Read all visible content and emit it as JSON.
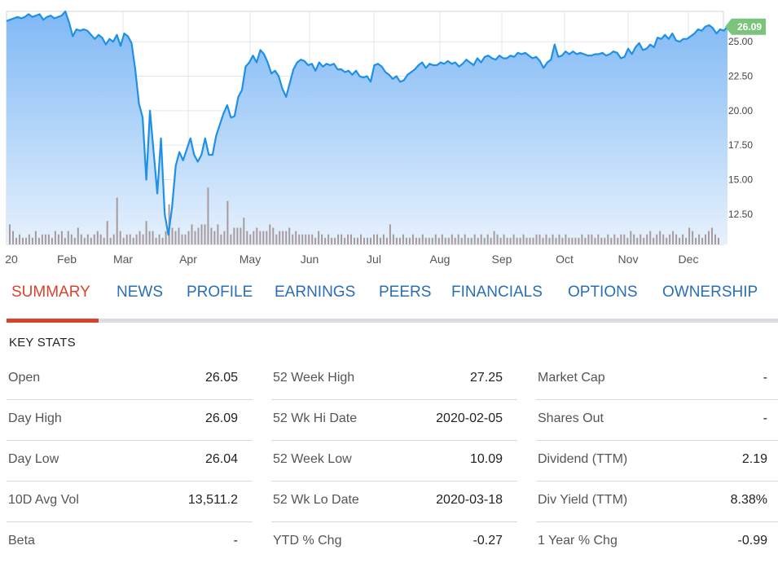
{
  "chart_data": {
    "type": "line",
    "title": "",
    "xlabel": "",
    "ylabel": "",
    "x_tick_labels": [
      "20",
      "Feb",
      "Mar",
      "Apr",
      "May",
      "Jun",
      "Jul",
      "Aug",
      "Sep",
      "Oct",
      "Nov",
      "Dec"
    ],
    "y_ticks": [
      "12.50",
      "15.00",
      "17.50",
      "20.00",
      "22.50",
      "25.00"
    ],
    "ylim": [
      10.3,
      27.2
    ],
    "grid": true,
    "last_price_label": "26.09",
    "colors": {
      "line": "#1e90e8",
      "fill_top": "#7fb8f5",
      "fill_bottom": "#e6f1fd",
      "volume": "#a89a9a",
      "last_badge": "#7cc47c",
      "grid": "#e3e6ea"
    },
    "series": [
      {
        "values": [
          26.5,
          26.6,
          26.7,
          26.8,
          26.7,
          26.8,
          27.0,
          26.8,
          26.9,
          27.0,
          26.6,
          26.8,
          26.9,
          26.7,
          26.8,
          26.9,
          27.2,
          26.4,
          25.4,
          25.9,
          25.8,
          25.9,
          25.8,
          25.5,
          25.2,
          25.5,
          25.3,
          24.8,
          25.2,
          25.0,
          25.5,
          24.7,
          25.6,
          25.4,
          24.9,
          23.0,
          20.5,
          19.5,
          15.0,
          20.0,
          17.0,
          14.0,
          18.0,
          12.5,
          11.0,
          13.0,
          16.0,
          17.0,
          16.4,
          17.2,
          18.0,
          16.8,
          16.3,
          16.8,
          18.0,
          16.8,
          16.8,
          18.2,
          19.0,
          19.8,
          20.4,
          19.5,
          19.6,
          21.0,
          21.5,
          23.2,
          23.5,
          24.0,
          23.5,
          24.4,
          24.1,
          23.5,
          22.7,
          22.9,
          22.5,
          21.6,
          21.0,
          22.0,
          23.0,
          23.5,
          23.7,
          23.6,
          23.3,
          23.4,
          22.9,
          23.5,
          23.2,
          23.4,
          23.3,
          23.4,
          23.0,
          23.0,
          22.8,
          22.9,
          22.6,
          22.9,
          22.5,
          22.4,
          22.5,
          22.1,
          23.3,
          23.4,
          23.2,
          22.8,
          22.6,
          22.3,
          22.5,
          22.1,
          22.2,
          22.6,
          22.8,
          23.0,
          23.3,
          23.5,
          23.1,
          23.4,
          23.3,
          23.3,
          23.5,
          23.4,
          23.6,
          23.4,
          23.5,
          23.2,
          23.4,
          23.7,
          23.5,
          23.3,
          23.8,
          23.5,
          23.9,
          24.0,
          23.8,
          23.7,
          24.0,
          23.8,
          23.8,
          24.0,
          23.9,
          24.2,
          24.1,
          24.2,
          24.0,
          23.8,
          23.9,
          23.6,
          23.1,
          23.5,
          23.7,
          24.8,
          23.9,
          24.0,
          24.3,
          24.1,
          24.3,
          24.1,
          24.2,
          24.1,
          24.0,
          24.0,
          24.1,
          24.1,
          24.2,
          24.0,
          24.1,
          24.3,
          24.2,
          23.8,
          23.9,
          24.5,
          24.1,
          24.6,
          24.9,
          24.4,
          24.5,
          24.8,
          24.6,
          25.3,
          25.2,
          25.5,
          25.2,
          25.6,
          25.1,
          25.0,
          25.2,
          25.2,
          25.4,
          25.6,
          25.9,
          25.8,
          26.1,
          26.2,
          26.0,
          25.6,
          25.9,
          25.8,
          26.09
        ]
      }
    ],
    "volume_values": [
      6,
      4,
      2,
      3,
      2,
      2,
      3,
      2,
      4,
      2,
      3,
      3,
      3,
      2,
      4,
      3,
      4,
      2,
      4,
      3,
      2,
      5,
      3,
      2,
      3,
      2,
      3,
      4,
      3,
      2,
      7,
      2,
      3,
      14,
      4,
      2,
      3,
      3,
      2,
      3,
      4,
      3,
      7,
      4,
      4,
      2,
      3,
      2,
      4,
      12,
      5,
      4,
      5,
      3,
      3,
      4,
      6,
      4,
      5,
      6,
      6,
      17,
      5,
      4,
      6,
      3,
      4,
      13,
      3,
      5,
      5,
      5,
      8,
      4,
      3,
      4,
      5,
      4,
      4,
      4,
      6,
      5,
      3,
      4,
      4,
      4,
      5,
      3,
      4,
      3,
      3,
      3,
      3,
      3,
      2,
      4,
      3,
      2,
      3,
      2,
      2,
      3,
      3,
      2,
      3,
      3,
      2,
      2,
      3,
      2,
      2,
      2,
      3,
      3,
      2,
      3,
      2,
      6,
      3,
      2,
      2,
      3,
      2,
      2,
      3,
      2,
      2,
      3,
      2,
      2,
      2,
      3,
      2,
      3,
      2,
      2,
      3,
      2,
      3,
      2,
      3,
      2,
      2,
      3,
      2,
      3,
      2,
      3,
      2,
      4,
      3,
      2,
      3,
      2,
      2,
      3,
      2,
      2,
      3,
      2,
      2,
      2,
      3,
      3,
      2,
      3,
      2,
      3,
      2,
      3,
      2,
      3,
      2,
      2,
      2,
      2,
      3,
      2,
      3,
      3,
      2,
      3,
      2,
      2,
      3,
      2,
      3,
      2,
      3,
      3,
      2,
      4,
      3,
      2,
      3,
      2,
      3,
      4,
      2,
      3,
      4,
      3,
      2,
      3,
      4,
      3,
      2,
      3,
      2,
      5,
      4,
      2,
      3,
      2,
      3,
      4,
      5,
      3,
      2
    ]
  },
  "tabs": [
    {
      "label": "SUMMARY",
      "active": true
    },
    {
      "label": "NEWS",
      "active": false
    },
    {
      "label": "PROFILE",
      "active": false
    },
    {
      "label": "EARNINGS",
      "active": false
    },
    {
      "label": "PEERS",
      "active": false
    },
    {
      "label": "FINANCIALS",
      "active": false
    },
    {
      "label": "OPTIONS",
      "active": false
    },
    {
      "label": "OWNERSHIP",
      "active": false
    }
  ],
  "key_stats": {
    "title": "KEY STATS",
    "columns": [
      [
        {
          "label": "Open",
          "value": "26.05"
        },
        {
          "label": "Day High",
          "value": "26.09"
        },
        {
          "label": "Day Low",
          "value": "26.04"
        },
        {
          "label": "10D Avg Vol",
          "value": "13,511.2"
        },
        {
          "label": "Beta",
          "value": "-"
        }
      ],
      [
        {
          "label": "52 Week High",
          "value": "27.25"
        },
        {
          "label": "52 Wk Hi Date",
          "value": "2020-02-05"
        },
        {
          "label": "52 Week Low",
          "value": "10.09"
        },
        {
          "label": "52 Wk Lo Date",
          "value": "2020-03-18"
        },
        {
          "label": "YTD % Chg",
          "value": "-0.27"
        }
      ],
      [
        {
          "label": "Market Cap",
          "value": "-"
        },
        {
          "label": "Shares Out",
          "value": "-"
        },
        {
          "label": "Dividend (TTM)",
          "value": "2.19"
        },
        {
          "label": "Div Yield (TTM)",
          "value": "8.38%"
        },
        {
          "label": "1 Year % Chg",
          "value": "-0.99"
        }
      ]
    ]
  }
}
